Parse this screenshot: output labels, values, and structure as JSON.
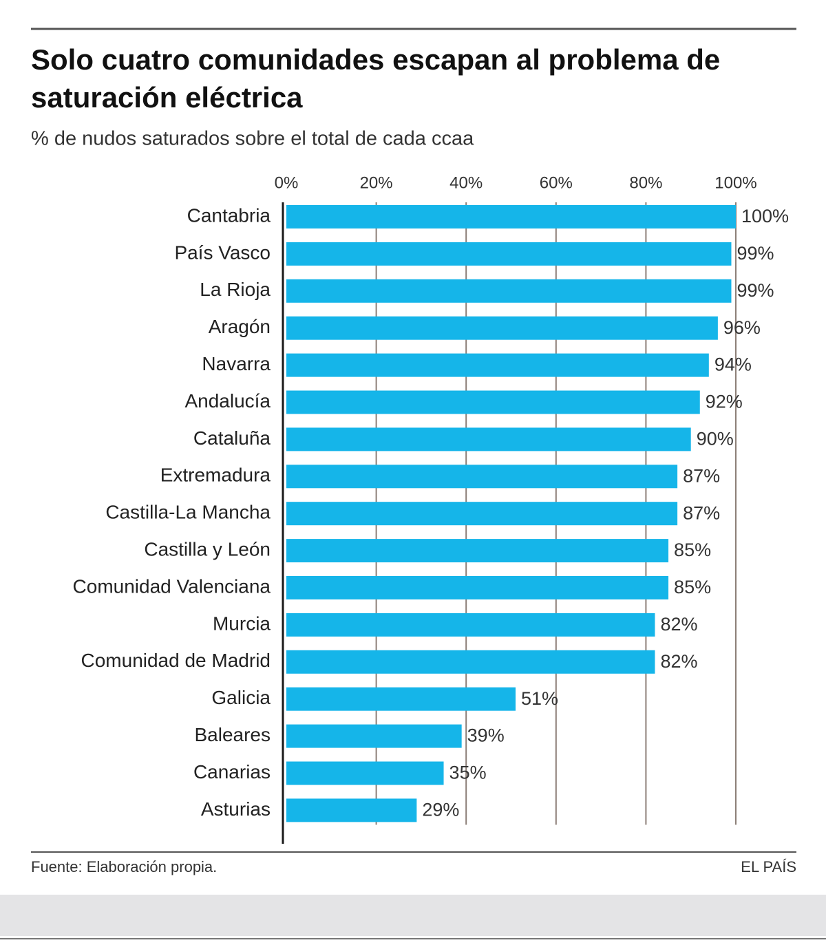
{
  "chart_data": {
    "type": "bar",
    "title": "Solo cuatro comunidades escapan al problema de saturación eléctrica",
    "subtitle": "% de nudos saturados sobre el total de cada ccaa",
    "categories": [
      "Cantabria",
      "País Vasco",
      "La Rioja",
      "Aragón",
      "Navarra",
      "Andalucía",
      "Cataluña",
      "Extremadura",
      "Castilla-La Mancha",
      "Castilla y León",
      "Comunidad Valenciana",
      "Murcia",
      "Comunidad de Madrid",
      "Galicia",
      "Baleares",
      "Canarias",
      "Asturias"
    ],
    "values": [
      100,
      99,
      99,
      96,
      94,
      92,
      90,
      87,
      87,
      85,
      85,
      82,
      82,
      51,
      39,
      35,
      29
    ],
    "value_labels": [
      "100%",
      "99%",
      "99%",
      "96%",
      "94%",
      "92%",
      "90%",
      "87%",
      "87%",
      "85%",
      "85%",
      "82%",
      "82%",
      "51%",
      "39%",
      "35%",
      "29%"
    ],
    "color": "#15b5e9",
    "xlim": [
      0,
      100
    ],
    "xticks": [
      {
        "value": 0,
        "label": "0%"
      },
      {
        "value": 20,
        "label": "20%"
      },
      {
        "value": 40,
        "label": "40%"
      },
      {
        "value": 60,
        "label": "60%"
      },
      {
        "value": 80,
        "label": "80%"
      },
      {
        "value": 100,
        "label": "100%"
      }
    ],
    "grid": true,
    "source": "Fuente: Elaboración propia.",
    "credit": "EL PAÍS"
  }
}
